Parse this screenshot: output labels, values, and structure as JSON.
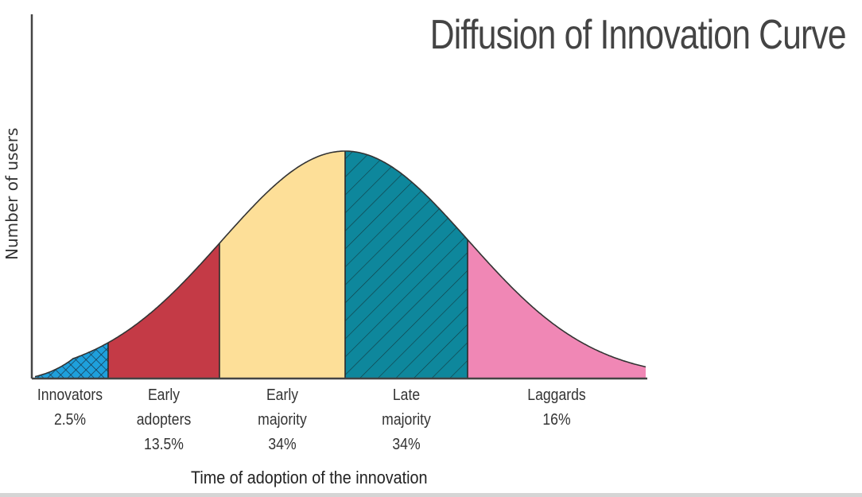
{
  "chart_data": {
    "type": "area",
    "title": "Diffusion of Innovation Curve",
    "xlabel": "Time of adoption of the innovation",
    "ylabel": "Number of users",
    "grid": false,
    "legend": "none",
    "categories": [
      "Innovators",
      "Early adopters",
      "Early majority",
      "Late majority",
      "Laggards"
    ],
    "values": [
      2.5,
      13.5,
      34,
      34,
      16
    ],
    "unit": "%",
    "segments": [
      {
        "name": "Innovators",
        "line1": "Innovators",
        "line2": "2.5%",
        "line3": "",
        "percent": 2.5,
        "color": "#1ea0dc",
        "pattern": "crosshatch"
      },
      {
        "name": "Early adopters",
        "line1": "Early",
        "line2": "adopters",
        "line3": "13.5%",
        "percent": 13.5,
        "color": "#c43a46",
        "pattern": "none"
      },
      {
        "name": "Early majority",
        "line1": "Early",
        "line2": "majority",
        "line3": "34%",
        "percent": 34,
        "color": "#fddf98",
        "pattern": "none"
      },
      {
        "name": "Late majority",
        "line1": "Late",
        "line2": "majority",
        "line3": "34%",
        "percent": 34,
        "color": "#0e879c",
        "pattern": "diagonal"
      },
      {
        "name": "Laggards",
        "line1": "Laggards",
        "line2": "16%",
        "line3": "",
        "percent": 16,
        "color": "#f087b5",
        "pattern": "none"
      }
    ]
  }
}
